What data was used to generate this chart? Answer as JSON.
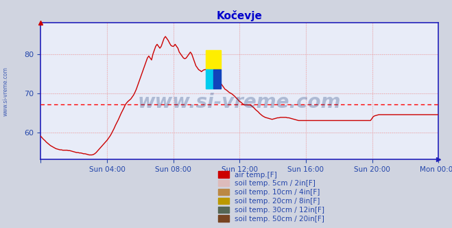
{
  "title": "Kočevje",
  "title_color": "#0000cc",
  "bg_color": "#d0d4e0",
  "plot_bg_color": "#e8ecf8",
  "grid_color": "#b0b4c8",
  "grid_dot_color": "#ffaaaa",
  "axis_color": "#2222bb",
  "tick_label_color": "#2244aa",
  "watermark_text": "www.si-vreme.com",
  "watermark_color": "#1a3a7a",
  "watermark_alpha": 0.28,
  "ylabel_text": "www.si-vreme.com",
  "ylabel_color": "#2244aa",
  "xlim": [
    0,
    288
  ],
  "ylim": [
    53,
    88
  ],
  "yticks": [
    60,
    70,
    80
  ],
  "xtick_positions": [
    0,
    48,
    96,
    144,
    192,
    240,
    288
  ],
  "xtick_labels": [
    "",
    "Sun 04:00",
    "Sun 08:00",
    "Sun 12:00",
    "Sun 16:00",
    "Sun 20:00",
    "Mon 00:00"
  ],
  "mean_line_y": 67.2,
  "mean_line_color": "#ff0000",
  "line_color": "#cc0000",
  "legend_entries": [
    {
      "label": "air temp.[F]",
      "color": "#cc0000"
    },
    {
      "label": "soil temp. 5cm / 2in[F]",
      "color": "#ddbbbb"
    },
    {
      "label": "soil temp. 10cm / 4in[F]",
      "color": "#bb8844"
    },
    {
      "label": "soil temp. 20cm / 8in[F]",
      "color": "#bb9900"
    },
    {
      "label": "soil temp. 30cm / 12in[F]",
      "color": "#556655"
    },
    {
      "label": "soil temp. 50cm / 20in[F]",
      "color": "#774422"
    }
  ],
  "air_temp_data": [
    59.0,
    58.6,
    58.2,
    57.9,
    57.5,
    57.2,
    56.9,
    56.6,
    56.4,
    56.2,
    56.0,
    55.8,
    55.7,
    55.6,
    55.5,
    55.5,
    55.4,
    55.4,
    55.4,
    55.4,
    55.3,
    55.3,
    55.2,
    55.1,
    55.0,
    54.9,
    54.8,
    54.8,
    54.7,
    54.7,
    54.6,
    54.5,
    54.5,
    54.4,
    54.3,
    54.2,
    54.2,
    54.2,
    54.3,
    54.5,
    54.8,
    55.2,
    55.6,
    56.0,
    56.4,
    56.8,
    57.2,
    57.6,
    58.0,
    58.5,
    59.0,
    59.6,
    60.3,
    61.0,
    61.8,
    62.5,
    63.2,
    64.0,
    64.8,
    65.5,
    66.2,
    67.0,
    67.5,
    67.9,
    68.2,
    68.5,
    69.0,
    69.5,
    70.2,
    71.0,
    72.0,
    73.0,
    74.0,
    75.0,
    76.0,
    77.0,
    78.0,
    79.0,
    79.5,
    79.0,
    78.5,
    80.0,
    81.0,
    82.0,
    82.5,
    82.0,
    81.5,
    82.0,
    83.0,
    84.0,
    84.5,
    84.0,
    83.5,
    82.8,
    82.2,
    82.0,
    82.0,
    82.5,
    82.0,
    81.5,
    80.5,
    80.0,
    79.5,
    79.0,
    78.8,
    79.0,
    79.5,
    80.0,
    80.5,
    80.0,
    79.0,
    78.0,
    77.0,
    76.5,
    76.0,
    75.8,
    75.5,
    75.8,
    76.0,
    76.0,
    76.5,
    76.0,
    75.5,
    74.8,
    74.2,
    73.8,
    73.5,
    73.2,
    73.0,
    72.8,
    72.5,
    72.0,
    71.5,
    71.0,
    70.8,
    70.5,
    70.2,
    70.0,
    69.8,
    69.5,
    69.2,
    68.8,
    68.5,
    68.0,
    67.8,
    67.5,
    67.2,
    67.0,
    67.0,
    67.0,
    67.0,
    67.0,
    66.8,
    66.5,
    66.2,
    65.8,
    65.5,
    65.2,
    64.8,
    64.5,
    64.2,
    64.0,
    63.8,
    63.7,
    63.6,
    63.5,
    63.4,
    63.3,
    63.4,
    63.5,
    63.6,
    63.7,
    63.7,
    63.8,
    63.8,
    63.8,
    63.8,
    63.8,
    63.7,
    63.7,
    63.6,
    63.5,
    63.4,
    63.3,
    63.2,
    63.1,
    63.0,
    63.0,
    63.0,
    63.0,
    63.0,
    63.0,
    63.0,
    63.0,
    63.0,
    63.0,
    63.0,
    63.0,
    63.0,
    63.0,
    63.0,
    63.0,
    63.0,
    63.0,
    63.0,
    63.0,
    63.0,
    63.0,
    63.0,
    63.0,
    63.0,
    63.0,
    63.0,
    63.0,
    63.0,
    63.0,
    63.0,
    63.0,
    63.0,
    63.0,
    63.0,
    63.0,
    63.0,
    63.0,
    63.0,
    63.0,
    63.0,
    63.0,
    63.0,
    63.0,
    63.0,
    63.0,
    63.0,
    63.0,
    63.0,
    63.0,
    63.0,
    63.0,
    63.0,
    63.5,
    64.0,
    64.2,
    64.3,
    64.4,
    64.5,
    64.5,
    64.5,
    64.5,
    64.5,
    64.5,
    64.5,
    64.5,
    64.5,
    64.5,
    64.5,
    64.5,
    64.5,
    64.5,
    64.5,
    64.5,
    64.5,
    64.5,
    64.5,
    64.5,
    64.5,
    64.5,
    64.5,
    64.5,
    64.5,
    64.5,
    64.5,
    64.5,
    64.5,
    64.5,
    64.5,
    64.5,
    64.5,
    64.5,
    64.5,
    64.5,
    64.5,
    64.5,
    64.5,
    64.5,
    64.5,
    64.5,
    64.5,
    64.5
  ]
}
